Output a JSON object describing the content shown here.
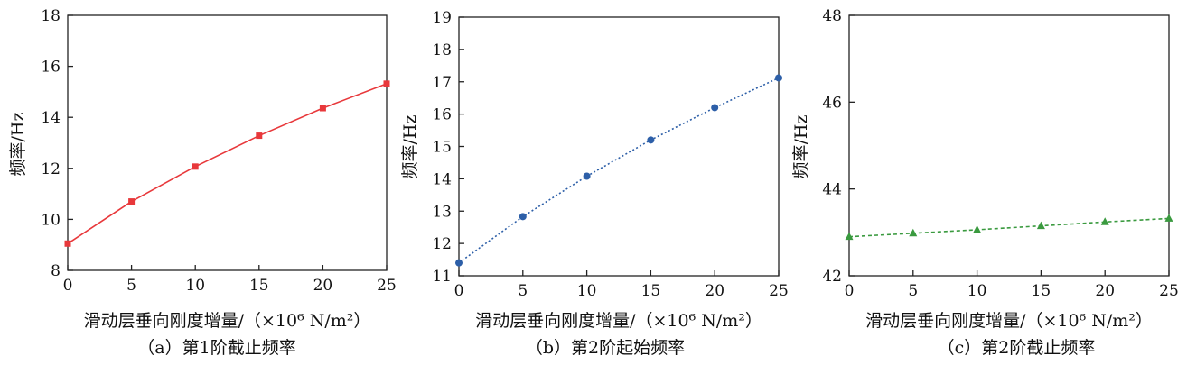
{
  "chart_data": [
    {
      "type": "line",
      "caption": "（a）第1阶截止频率",
      "xlabel": "滑动层垂向刚度增量/（×10⁶ N/m²）",
      "ylabel": "频率/Hz",
      "x": [
        0,
        5,
        10,
        15,
        20,
        25
      ],
      "xticks": [
        "0",
        "5",
        "10",
        "15",
        "20",
        "25"
      ],
      "yticks": [
        "8",
        "10",
        "12",
        "14",
        "16",
        "18"
      ],
      "xlim": [
        0,
        25
      ],
      "ylim": [
        8,
        18
      ],
      "series": [
        {
          "values": [
            9.05,
            10.7,
            12.07,
            13.28,
            14.36,
            15.32
          ],
          "color": "#e8383b",
          "marker": "square",
          "line": "solid"
        }
      ]
    },
    {
      "type": "line",
      "caption": "（b）第2阶起始频率",
      "xlabel": "滑动层垂向刚度增量/（×10⁶ N/m²）",
      "ylabel": "频率/Hz",
      "x": [
        0,
        5,
        10,
        15,
        20,
        25
      ],
      "xticks": [
        "0",
        "5",
        "10",
        "15",
        "20",
        "25"
      ],
      "yticks": [
        "11",
        "12",
        "13",
        "14",
        "15",
        "16",
        "17",
        "18",
        "19"
      ],
      "xlim": [
        0,
        25
      ],
      "ylim": [
        11,
        19
      ],
      "series": [
        {
          "values": [
            11.4,
            12.83,
            14.08,
            15.2,
            16.2,
            17.12
          ],
          "color": "#2d5fa8",
          "marker": "circle",
          "line": "dotted"
        }
      ]
    },
    {
      "type": "line",
      "caption": "（c）第2阶截止频率",
      "xlabel": "滑动层垂向刚度增量/（×10⁶ N/m²）",
      "ylabel": "频率/Hz",
      "x": [
        0,
        5,
        10,
        15,
        20,
        25
      ],
      "xticks": [
        "0",
        "5",
        "10",
        "15",
        "20",
        "25"
      ],
      "yticks": [
        "42",
        "44",
        "46",
        "48"
      ],
      "xlim": [
        0,
        25
      ],
      "ylim": [
        42,
        48
      ],
      "series": [
        {
          "values": [
            42.9,
            42.98,
            43.06,
            43.15,
            43.24,
            43.32
          ],
          "color": "#3a9a3f",
          "marker": "triangle",
          "line": "dashed"
        }
      ]
    }
  ]
}
